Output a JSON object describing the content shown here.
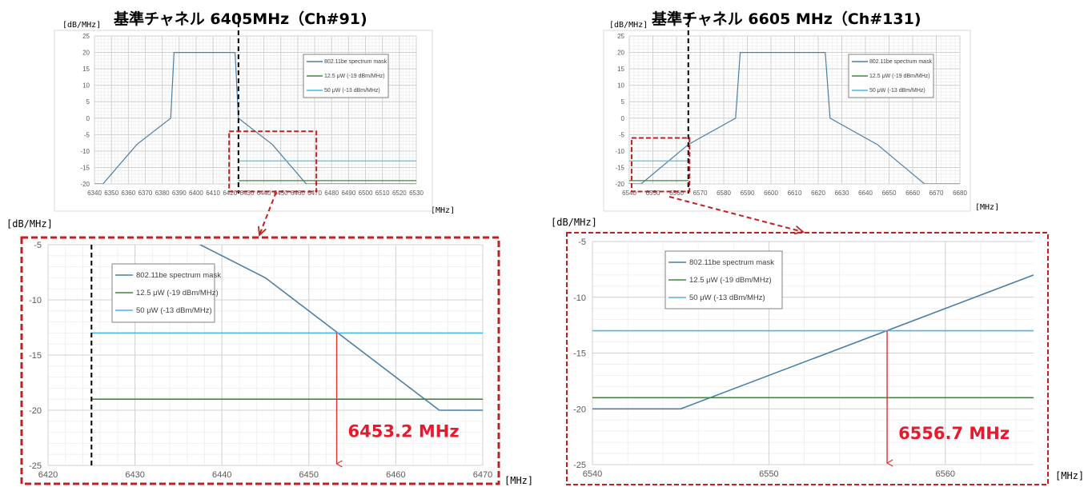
{
  "colors": {
    "mask": "#4a7fa6",
    "p125": "#3e8a3a",
    "p50": "#4fb3e6",
    "highlight": "#c41e1e",
    "arrow": "#e0302b",
    "callout": "#e8192c"
  },
  "legend_labels": [
    "802.11be spectrum mask",
    "12.5 μW (-19 dBm/MHz)",
    "50 μW (-13 dBm/MHz)"
  ],
  "chart_data": [
    {
      "type": "line",
      "title": "基準チャネル 6405MHz（Ch#91)",
      "ylabel": "[dB/MHz]",
      "xlabel": "[MHz]",
      "xlim": [
        6340,
        6530
      ],
      "ylim": [
        -20,
        25
      ],
      "xticks": [
        "6340",
        "6350",
        "6360",
        "6370",
        "6380",
        "6390",
        "6400",
        "6410",
        "6420",
        "6430",
        "6440",
        "6450",
        "6460",
        "6470",
        "6480",
        "6490",
        "6500",
        "6510",
        "6520",
        "6530"
      ],
      "yticks": [
        "25",
        "20",
        "15",
        "10",
        "5",
        "0",
        "-5",
        "-10",
        "-15",
        "-20"
      ],
      "series": [
        {
          "name": "802.11be spectrum mask",
          "x": [
            6340,
            6345,
            6365,
            6385,
            6387,
            6423,
            6425,
            6445,
            6465,
            6530
          ],
          "y": [
            -20,
            -20,
            -8,
            0,
            20,
            20,
            0,
            -8,
            -20,
            -20
          ]
        },
        {
          "name": "12.5 μW (-19 dBm/MHz)",
          "x": [
            6425,
            6530
          ],
          "y": [
            -19,
            -19
          ]
        },
        {
          "name": "50 μW (-13 dBm/MHz)",
          "x": [
            6425,
            6530
          ],
          "y": [
            -13,
            -13
          ]
        }
      ],
      "vline_x": 6425,
      "highlight_box": {
        "x": [
          6419.5,
          6471
        ],
        "y": [
          -4,
          -22.3
        ]
      },
      "legend": "top-right",
      "grid": true
    },
    {
      "type": "line",
      "title": "基準チャネル 6605 MHz（Ch#131)",
      "ylabel": "[dB/MHz]",
      "xlabel": "[MHz]",
      "xlim": [
        6540,
        6680
      ],
      "ylim": [
        -20,
        25
      ],
      "xticks": [
        "6540",
        "6550",
        "6560",
        "6570",
        "6580",
        "6590",
        "6600",
        "6610",
        "6620",
        "6630",
        "6640",
        "6650",
        "6660",
        "6670",
        "6680"
      ],
      "yticks": [
        "25",
        "20",
        "15",
        "10",
        "5",
        "0",
        "-5",
        "-10",
        "-15",
        "-20"
      ],
      "series": [
        {
          "name": "802.11be spectrum mask",
          "x": [
            6540,
            6545,
            6565,
            6585,
            6587,
            6623,
            6625,
            6645,
            6665,
            6680
          ],
          "y": [
            -20,
            -20,
            -8,
            0,
            20,
            20,
            0,
            -8,
            -20,
            -20
          ]
        },
        {
          "name": "12.5 μW (-19 dBm/MHz)",
          "x": [
            6540,
            6565
          ],
          "y": [
            -19,
            -19
          ]
        },
        {
          "name": "50 μW (-13 dBm/MHz)",
          "x": [
            6540,
            6565
          ],
          "y": [
            -13,
            -13
          ]
        }
      ],
      "vline_x": 6565,
      "highlight_box": {
        "x": [
          6541,
          6565.5
        ],
        "y": [
          -6,
          -22.3
        ]
      },
      "legend": "top-right",
      "grid": true
    },
    {
      "type": "line",
      "ylabel": "[dB/MHz]",
      "xlabel": "[MHz]",
      "xlim": [
        6420,
        6470
      ],
      "ylim": [
        -25,
        -5
      ],
      "xticks": [
        "6420",
        "6430",
        "6440",
        "6450",
        "6460",
        "6470"
      ],
      "yticks": [
        "-5",
        "-10",
        "-15",
        "-20",
        "-25"
      ],
      "series": [
        {
          "name": "802.11be spectrum mask",
          "x": [
            6425,
            6445,
            6465,
            6470
          ],
          "y": [
            0,
            -8,
            -20,
            -20
          ]
        },
        {
          "name": "12.5 μW (-19 dBm/MHz)",
          "x": [
            6425,
            6470
          ],
          "y": [
            -19,
            -19
          ]
        },
        {
          "name": "50 μW (-13 dBm/MHz)",
          "x": [
            6425,
            6470
          ],
          "y": [
            -13,
            -13
          ]
        }
      ],
      "vline_x": 6425,
      "annotation": {
        "x": 6453.2,
        "y": -13,
        "text": "6453.2 MHz"
      },
      "legend": "top-left",
      "grid": true
    },
    {
      "type": "line",
      "ylabel": "[dB/MHz]",
      "xlabel": "[MHz]",
      "xlim": [
        6540,
        6565
      ],
      "ylim": [
        -25,
        -5
      ],
      "xticks": [
        "6540",
        "6550",
        "6560"
      ],
      "yticks": [
        "-5",
        "-10",
        "-15",
        "-20",
        "-25"
      ],
      "series": [
        {
          "name": "802.11be spectrum mask",
          "x": [
            6540,
            6545,
            6565
          ],
          "y": [
            -20,
            -20,
            -8
          ]
        },
        {
          "name": "12.5 μW (-19 dBm/MHz)",
          "x": [
            6540,
            6565
          ],
          "y": [
            -19,
            -19
          ]
        },
        {
          "name": "50 μW (-13 dBm/MHz)",
          "x": [
            6540,
            6565
          ],
          "y": [
            -13,
            -13
          ]
        }
      ],
      "annotation": {
        "x": 6556.7,
        "y": -13,
        "text": "6556.7 MHz"
      },
      "legend": "top-left",
      "grid": true
    }
  ]
}
